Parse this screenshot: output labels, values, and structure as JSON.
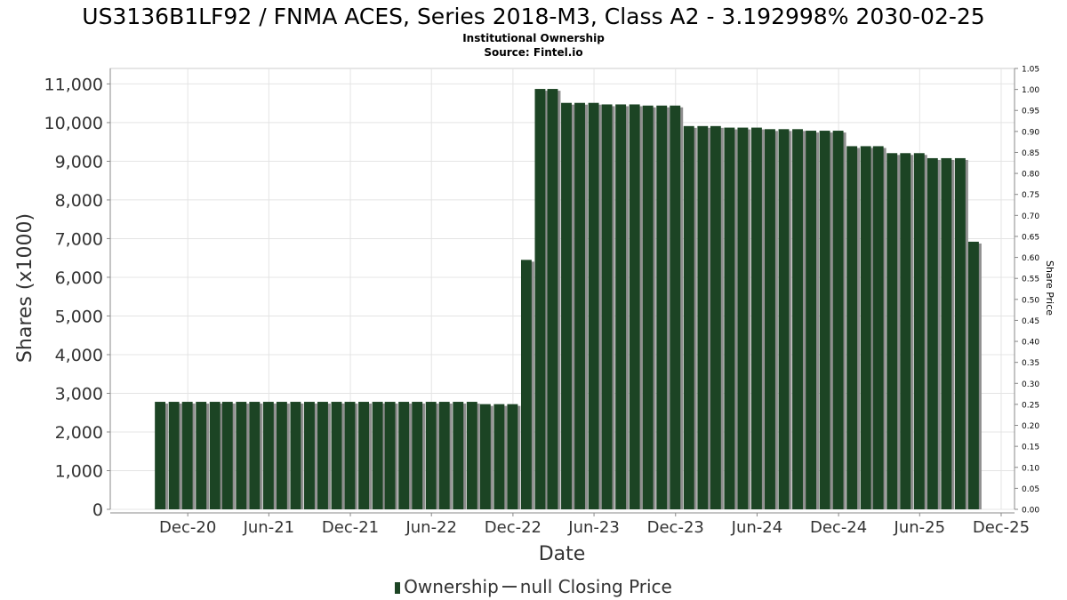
{
  "chart_data": {
    "type": "bar",
    "title": "US3136B1LF92 / FNMA ACES, Series 2018-M3, Class A2 - 3.192998% 2030-02-25",
    "subtitle": "Institutional Ownership",
    "source": "Source: Fintel.io",
    "xlabel": "Date",
    "ylabel": "Shares (x1000)",
    "y2label": "Share Price",
    "ylim": [
      0,
      11400
    ],
    "y2lim": [
      0,
      1.05
    ],
    "yticks": [
      "0",
      "1,000",
      "2,000",
      "3,000",
      "4,000",
      "5,000",
      "6,000",
      "7,000",
      "8,000",
      "9,000",
      "10,000",
      "11,000"
    ],
    "y2ticks": [
      "0.00",
      "0.05",
      "0.10",
      "0.15",
      "0.20",
      "0.25",
      "0.30",
      "0.35",
      "0.40",
      "0.45",
      "0.50",
      "0.55",
      "0.60",
      "0.65",
      "0.70",
      "0.75",
      "0.80",
      "0.85",
      "0.90",
      "0.95",
      "1.00",
      "1.05"
    ],
    "xticks": [
      "Dec-20",
      "Jun-21",
      "Dec-21",
      "Jun-22",
      "Dec-22",
      "Jun-23",
      "Dec-23",
      "Jun-24",
      "Dec-24",
      "Jun-25",
      "Dec-25"
    ],
    "xlim": [
      "2020-06-10",
      "2025-12-31"
    ],
    "grid": true,
    "legend_position": "bottom",
    "colors": {
      "bar": "#1c4424",
      "bar_shadow": "#8f8f8f",
      "grid": "#e4e4e4",
      "axis": "#888888"
    },
    "series": [
      {
        "name": "Ownership",
        "x": [
          "2020-09-30",
          "2020-10-31",
          "2020-11-30",
          "2020-12-31",
          "2021-01-31",
          "2021-02-28",
          "2021-03-31",
          "2021-04-30",
          "2021-05-31",
          "2021-06-30",
          "2021-07-31",
          "2021-08-31",
          "2021-09-30",
          "2021-10-31",
          "2021-11-30",
          "2021-12-31",
          "2022-01-31",
          "2022-02-28",
          "2022-03-31",
          "2022-04-30",
          "2022-05-31",
          "2022-06-30",
          "2022-07-31",
          "2022-08-31",
          "2022-09-30",
          "2022-10-31",
          "2022-11-30",
          "2022-12-31",
          "2023-01-31",
          "2023-02-28",
          "2023-03-31",
          "2023-04-30",
          "2023-05-31",
          "2023-06-30",
          "2023-07-31",
          "2023-08-31",
          "2023-09-30",
          "2023-10-31",
          "2023-11-30",
          "2023-12-31",
          "2024-01-31",
          "2024-02-29",
          "2024-03-31",
          "2024-04-30",
          "2024-05-31",
          "2024-06-30",
          "2024-07-31",
          "2024-08-31",
          "2024-09-30",
          "2024-10-31",
          "2024-11-30",
          "2024-12-31",
          "2025-01-31",
          "2025-02-28",
          "2025-03-31",
          "2025-04-30",
          "2025-05-31",
          "2025-06-30",
          "2025-07-31",
          "2025-08-31",
          "2025-09-30"
        ],
        "values": [
          2780,
          2780,
          2780,
          2780,
          2780,
          2780,
          2780,
          2780,
          2780,
          2780,
          2780,
          2780,
          2780,
          2780,
          2780,
          2780,
          2780,
          2780,
          2780,
          2780,
          2780,
          2780,
          2780,
          2780,
          2720,
          2720,
          2720,
          6450,
          10870,
          10870,
          10510,
          10510,
          10510,
          10470,
          10470,
          10470,
          10440,
          10440,
          10440,
          9910,
          9910,
          9910,
          9870,
          9870,
          9870,
          9830,
          9830,
          9830,
          9790,
          9790,
          9790,
          9390,
          9390,
          9390,
          9210,
          9210,
          9210,
          9080,
          9080,
          9080,
          6920
        ]
      },
      {
        "name": "null Closing Price",
        "x": [],
        "values": []
      }
    ]
  }
}
